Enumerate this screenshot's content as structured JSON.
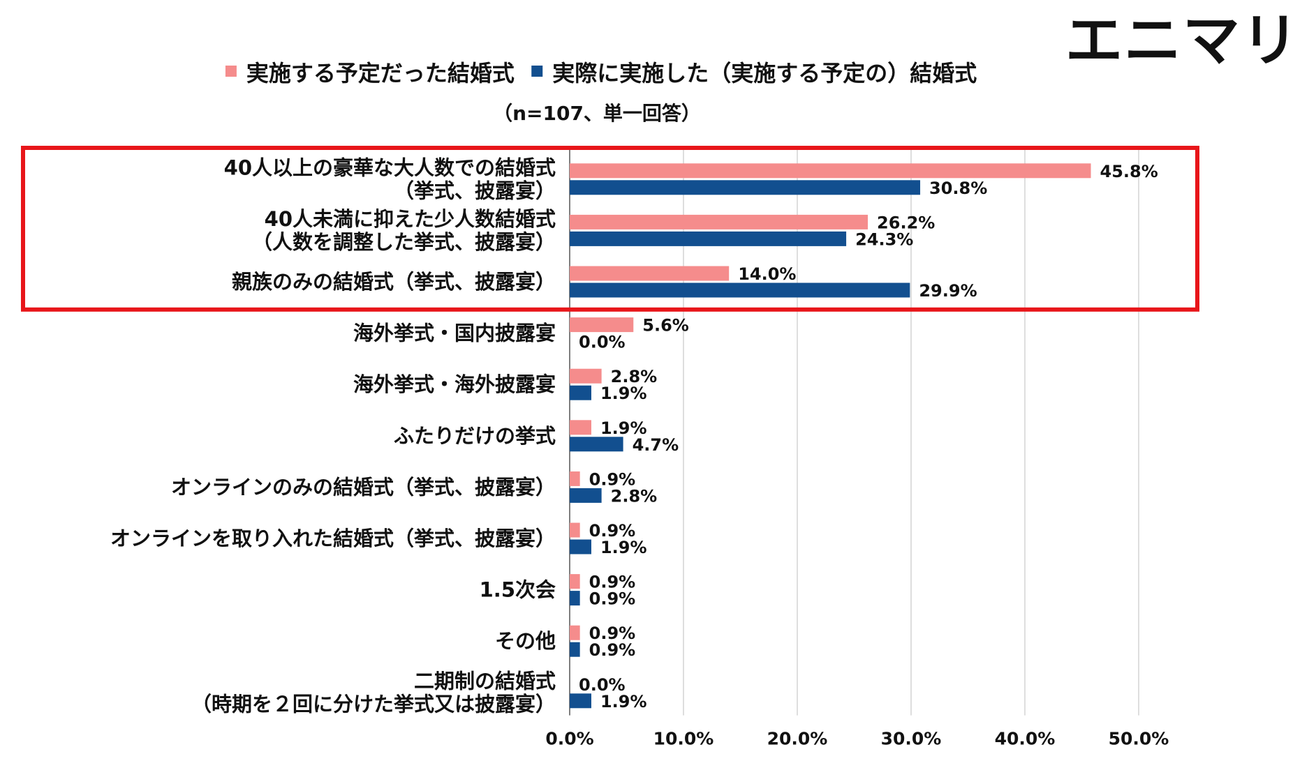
{
  "logo_text": "エニマリ",
  "subtitle": "（n=107、単一回答）",
  "colors": {
    "series_planned": "#F58C8C",
    "series_actual": "#124F8F",
    "highlight_box": "#E8161A",
    "grid": "#D3D3D3"
  },
  "chart_data": {
    "type": "bar",
    "orientation": "horizontal",
    "title": "",
    "xlabel": "",
    "ylabel": "",
    "xlim": [
      0,
      50
    ],
    "x_ticks": [
      "0.0%",
      "10.0%",
      "20.0%",
      "30.0%",
      "40.0%",
      "50.0%"
    ],
    "grid": true,
    "legend_position": "top-center",
    "categories": [
      [
        "40人以上の豪華な大人数での結婚式",
        "（挙式、披露宴）"
      ],
      [
        "40人未満に抑えた少人数結婚式",
        "（人数を調整した挙式、披露宴）"
      ],
      [
        "親族のみの結婚式（挙式、披露宴）"
      ],
      [
        "海外挙式・国内披露宴"
      ],
      [
        "海外挙式・海外披露宴"
      ],
      [
        "ふたりだけの挙式"
      ],
      [
        "オンラインのみの結婚式（挙式、披露宴）"
      ],
      [
        "オンラインを取り入れた結婚式（挙式、披露宴）"
      ],
      [
        "1.5次会"
      ],
      [
        "その他"
      ],
      [
        "二期制の結婚式",
        "（時期を２回に分けた挙式又は披露宴）"
      ]
    ],
    "series": [
      {
        "name": "実施する予定だった結婚式",
        "values": [
          45.8,
          26.2,
          14.0,
          5.6,
          2.8,
          1.9,
          0.9,
          0.9,
          0.9,
          0.9,
          0.0
        ],
        "labels": [
          "45.8%",
          "26.2%",
          "14.0%",
          "5.6%",
          "2.8%",
          "1.9%",
          "0.9%",
          "0.9%",
          "0.9%",
          "0.9%",
          "0.0%"
        ]
      },
      {
        "name": "実際に実施した（実施する予定の）結婚式",
        "values": [
          30.8,
          24.3,
          29.9,
          0.0,
          1.9,
          4.7,
          2.8,
          1.9,
          0.9,
          0.9,
          1.9
        ],
        "labels": [
          "30.8%",
          "24.3%",
          "29.9%",
          "0.0%",
          "1.9%",
          "4.7%",
          "2.8%",
          "1.9%",
          "0.9%",
          "0.9%",
          "1.9%"
        ]
      }
    ],
    "highlighted_categories": [
      0,
      1,
      2
    ]
  }
}
